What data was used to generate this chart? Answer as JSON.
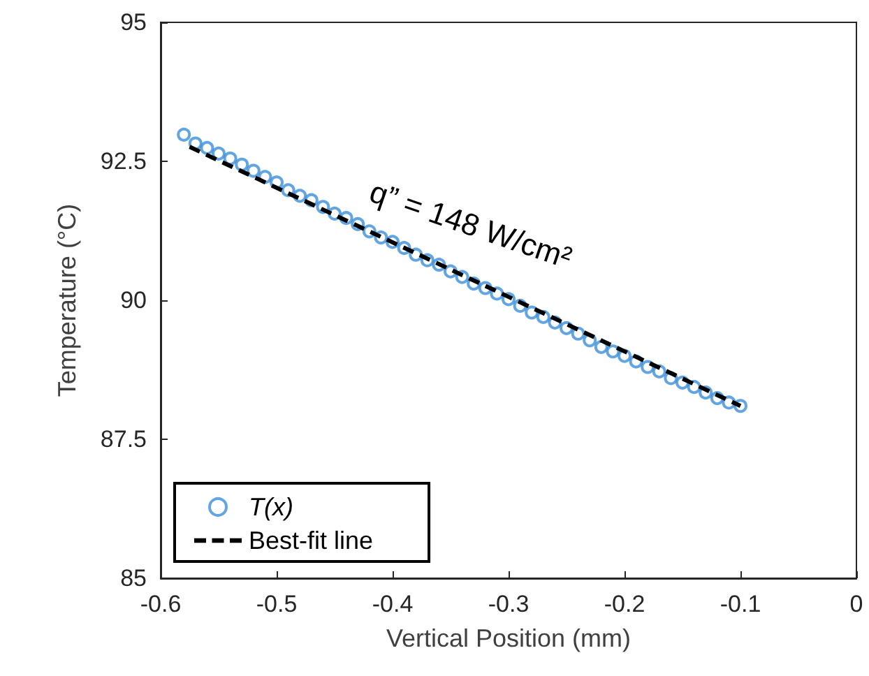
{
  "chart_data": {
    "type": "scatter",
    "xlabel": "Vertical Position (mm)",
    "ylabel": "Temperature (°C)",
    "annotations": [
      "q” = 148 W/cm²"
    ],
    "series": [
      {
        "name": "T(x)",
        "color": "#3b8fd9",
        "marker": "circle",
        "x": [
          -0.58,
          -0.57,
          -0.56,
          -0.55,
          -0.54,
          -0.53,
          -0.52,
          -0.51,
          -0.5,
          -0.49,
          -0.48,
          -0.47,
          -0.46,
          -0.45,
          -0.44,
          -0.43,
          -0.42,
          -0.41,
          -0.4,
          -0.39,
          -0.38,
          -0.37,
          -0.36,
          -0.35,
          -0.34,
          -0.33,
          -0.32,
          -0.31,
          -0.3,
          -0.29,
          -0.28,
          -0.27,
          -0.26,
          -0.25,
          -0.24,
          -0.23,
          -0.22,
          -0.21,
          -0.2,
          -0.19,
          -0.18,
          -0.17,
          -0.16,
          -0.15,
          -0.14,
          -0.13,
          -0.12,
          -0.11,
          -0.1
        ],
        "values": [
          92.98,
          92.82,
          92.74,
          92.64,
          92.55,
          92.44,
          92.33,
          92.22,
          92.12,
          91.98,
          91.88,
          91.8,
          91.68,
          91.56,
          91.48,
          91.37,
          91.24,
          91.13,
          91.05,
          90.94,
          90.82,
          90.72,
          90.64,
          90.52,
          90.42,
          90.3,
          90.22,
          90.12,
          90.02,
          89.9,
          89.78,
          89.7,
          89.6,
          89.5,
          89.4,
          89.28,
          89.16,
          89.08,
          89.0,
          88.9,
          88.8,
          88.72,
          88.6,
          88.52,
          88.44,
          88.34,
          88.24,
          88.16,
          88.1
        ]
      },
      {
        "name": "Best-fit line",
        "type": "line",
        "color": "#000000",
        "line_style": "dashed",
        "marker": "none",
        "x": [
          -0.575,
          -0.1
        ],
        "values": [
          92.76,
          88.1
        ]
      }
    ],
    "xlim": [
      -0.6,
      0
    ],
    "xticks": [
      -0.6,
      -0.5,
      -0.4,
      -0.3,
      -0.2,
      -0.1,
      0
    ],
    "ylim": [
      85,
      95
    ],
    "yticks": [
      85,
      87.5,
      90,
      92.5,
      95
    ],
    "grid": false,
    "legend": "bottom left"
  }
}
